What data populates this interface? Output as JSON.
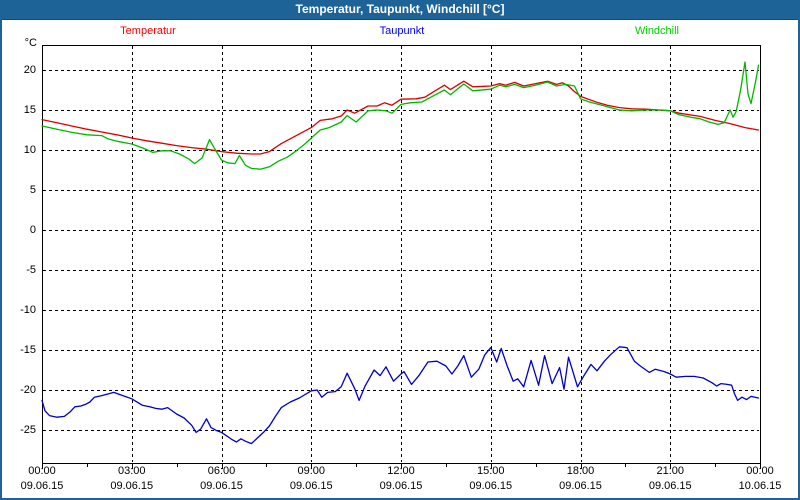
{
  "window": {
    "title": "Temperatur, Taupunkt, Windchill [°C]",
    "titlebar_color": "#1d6397"
  },
  "chart_data": {
    "type": "line",
    "title": "Temperatur, Taupunkt, Windchill [°C]",
    "ylabel": "°C",
    "xlabel": "",
    "x_unit": "hours_of_day",
    "xlim": [
      0,
      24
    ],
    "ylim": [
      -29.1,
      23.1
    ],
    "grid": true,
    "legend_position": "top",
    "y_ticks": [
      20,
      15,
      10,
      5,
      0,
      -5,
      -10,
      -15,
      -20,
      -25
    ],
    "x_ticks": [
      {
        "h": 0,
        "time": "00:00",
        "date": "09.06.15"
      },
      {
        "h": 3,
        "time": "03:00",
        "date": "09.06.15"
      },
      {
        "h": 6,
        "time": "06:00",
        "date": "09.06.15"
      },
      {
        "h": 9,
        "time": "09:00",
        "date": "09.06.15"
      },
      {
        "h": 12,
        "time": "12:00",
        "date": "09.06.15"
      },
      {
        "h": 15,
        "time": "15:00",
        "date": "09.06.15"
      },
      {
        "h": 18,
        "time": "18:00",
        "date": "09.06.15"
      },
      {
        "h": 21,
        "time": "21:00",
        "date": "09.06.15"
      },
      {
        "h": 24,
        "time": "00:00",
        "date": "10.06.15"
      }
    ],
    "series": [
      {
        "name": "Temperatur",
        "color": "#dd0000",
        "legend_color": "#ff0000",
        "points": [
          [
            0,
            13.8
          ],
          [
            0.5,
            13.4
          ],
          [
            1,
            13.0
          ],
          [
            1.5,
            12.6
          ],
          [
            2,
            12.25
          ],
          [
            2.5,
            11.9
          ],
          [
            3,
            11.5
          ],
          [
            3.5,
            11.15
          ],
          [
            4,
            10.85
          ],
          [
            4.5,
            10.55
          ],
          [
            5,
            10.3
          ],
          [
            5.5,
            10.1
          ],
          [
            6,
            9.8
          ],
          [
            6.5,
            9.6
          ],
          [
            7,
            9.5
          ],
          [
            7.3,
            9.5
          ],
          [
            7.6,
            9.8
          ],
          [
            8,
            10.8
          ],
          [
            8.5,
            11.8
          ],
          [
            9,
            12.8
          ],
          [
            9.3,
            13.7
          ],
          [
            9.7,
            13.9
          ],
          [
            10,
            14.25
          ],
          [
            10.2,
            15.0
          ],
          [
            10.45,
            14.6
          ],
          [
            10.9,
            15.5
          ],
          [
            11.2,
            15.5
          ],
          [
            11.45,
            15.9
          ],
          [
            11.7,
            15.6
          ],
          [
            12,
            16.35
          ],
          [
            12.5,
            16.4
          ],
          [
            12.8,
            16.6
          ],
          [
            13.1,
            17.3
          ],
          [
            13.45,
            18.1
          ],
          [
            13.65,
            17.55
          ],
          [
            14.1,
            18.6
          ],
          [
            14.4,
            17.9
          ],
          [
            15,
            18.0
          ],
          [
            15.3,
            18.3
          ],
          [
            15.5,
            18.1
          ],
          [
            15.8,
            18.45
          ],
          [
            16.1,
            18.0
          ],
          [
            16.5,
            18.3
          ],
          [
            16.9,
            18.6
          ],
          [
            17.2,
            18.2
          ],
          [
            17.4,
            18.4
          ],
          [
            17.6,
            18.0
          ],
          [
            17.8,
            17.3
          ],
          [
            18.0,
            16.7
          ],
          [
            18.3,
            16.3
          ],
          [
            18.6,
            15.9
          ],
          [
            18.9,
            15.6
          ],
          [
            19.3,
            15.3
          ],
          [
            19.7,
            15.15
          ],
          [
            20.2,
            15.1
          ],
          [
            20.6,
            15.0
          ],
          [
            21,
            14.9
          ],
          [
            21.3,
            14.6
          ],
          [
            22,
            14.2
          ],
          [
            22.5,
            13.7
          ],
          [
            23,
            13.3
          ],
          [
            23.5,
            12.8
          ],
          [
            23.95,
            12.5
          ]
        ]
      },
      {
        "name": "Taupunkt",
        "color": "#0000cc",
        "legend_color": "#0000ff",
        "points": [
          [
            0,
            -21.3
          ],
          [
            0.1,
            -22.6
          ],
          [
            0.25,
            -23.2
          ],
          [
            0.5,
            -23.4
          ],
          [
            0.75,
            -23.3
          ],
          [
            0.95,
            -22.7
          ],
          [
            1.1,
            -22.1
          ],
          [
            1.3,
            -22.0
          ],
          [
            1.45,
            -21.8
          ],
          [
            1.6,
            -21.5
          ],
          [
            1.75,
            -20.9
          ],
          [
            2.0,
            -20.7
          ],
          [
            2.4,
            -20.3
          ],
          [
            2.7,
            -20.7
          ],
          [
            3.0,
            -21.1
          ],
          [
            3.35,
            -21.9
          ],
          [
            3.6,
            -22.1
          ],
          [
            3.8,
            -22.3
          ],
          [
            4.0,
            -22.4
          ],
          [
            4.2,
            -22.2
          ],
          [
            4.5,
            -23.0
          ],
          [
            4.75,
            -23.5
          ],
          [
            5.0,
            -24.4
          ],
          [
            5.15,
            -25.3
          ],
          [
            5.3,
            -24.9
          ],
          [
            5.5,
            -23.6
          ],
          [
            5.65,
            -24.7
          ],
          [
            5.85,
            -25.1
          ],
          [
            6.0,
            -25.3
          ],
          [
            6.2,
            -25.8
          ],
          [
            6.35,
            -26.2
          ],
          [
            6.5,
            -26.5
          ],
          [
            6.65,
            -26.1
          ],
          [
            6.8,
            -26.4
          ],
          [
            7.0,
            -26.7
          ],
          [
            7.2,
            -26.0
          ],
          [
            7.4,
            -25.3
          ],
          [
            7.6,
            -24.5
          ],
          [
            7.8,
            -23.3
          ],
          [
            8.0,
            -22.2
          ],
          [
            8.3,
            -21.5
          ],
          [
            8.6,
            -21.0
          ],
          [
            9.0,
            -20.1
          ],
          [
            9.2,
            -20.0
          ],
          [
            9.35,
            -20.9
          ],
          [
            9.55,
            -20.3
          ],
          [
            9.8,
            -20.2
          ],
          [
            10.0,
            -19.6
          ],
          [
            10.2,
            -17.9
          ],
          [
            10.45,
            -19.8
          ],
          [
            10.6,
            -21.3
          ],
          [
            10.8,
            -19.5
          ],
          [
            11.1,
            -17.5
          ],
          [
            11.3,
            -18.2
          ],
          [
            11.5,
            -17.1
          ],
          [
            11.75,
            -18.9
          ],
          [
            12.0,
            -18.0
          ],
          [
            12.1,
            -17.7
          ],
          [
            12.35,
            -19.3
          ],
          [
            12.6,
            -18.2
          ],
          [
            12.9,
            -16.5
          ],
          [
            13.2,
            -16.4
          ],
          [
            13.5,
            -17.0
          ],
          [
            13.7,
            -18.0
          ],
          [
            13.9,
            -17.0
          ],
          [
            14.1,
            -15.7
          ],
          [
            14.35,
            -18.4
          ],
          [
            14.6,
            -17.4
          ],
          [
            14.8,
            -15.6
          ],
          [
            15.0,
            -14.7
          ],
          [
            15.2,
            -16.5
          ],
          [
            15.35,
            -14.8
          ],
          [
            15.55,
            -17.0
          ],
          [
            15.75,
            -18.9
          ],
          [
            15.9,
            -18.6
          ],
          [
            16.1,
            -19.6
          ],
          [
            16.35,
            -16.3
          ],
          [
            16.6,
            -19.4
          ],
          [
            16.8,
            -15.7
          ],
          [
            17.05,
            -19.2
          ],
          [
            17.3,
            -17.2
          ],
          [
            17.45,
            -19.9
          ],
          [
            17.6,
            -15.9
          ],
          [
            17.9,
            -19.6
          ],
          [
            18.1,
            -18.3
          ],
          [
            18.35,
            -16.8
          ],
          [
            18.55,
            -17.6
          ],
          [
            18.8,
            -16.4
          ],
          [
            19.0,
            -15.6
          ],
          [
            19.3,
            -14.6
          ],
          [
            19.55,
            -14.7
          ],
          [
            19.8,
            -16.4
          ],
          [
            20.0,
            -17.0
          ],
          [
            20.3,
            -17.8
          ],
          [
            20.5,
            -17.4
          ],
          [
            20.8,
            -17.7
          ],
          [
            21.0,
            -18.0
          ],
          [
            21.2,
            -18.4
          ],
          [
            21.5,
            -18.3
          ],
          [
            21.8,
            -18.3
          ],
          [
            22.1,
            -18.5
          ],
          [
            22.4,
            -19.1
          ],
          [
            22.55,
            -19.5
          ],
          [
            22.7,
            -19.2
          ],
          [
            22.9,
            -19.3
          ],
          [
            23.05,
            -19.4
          ],
          [
            23.15,
            -20.5
          ],
          [
            23.25,
            -21.3
          ],
          [
            23.4,
            -20.9
          ],
          [
            23.55,
            -21.2
          ],
          [
            23.7,
            -20.8
          ],
          [
            23.95,
            -21.0
          ]
        ]
      },
      {
        "name": "Windchill",
        "color": "#00b800",
        "legend_color": "#00cc00",
        "points": [
          [
            0,
            13.0
          ],
          [
            0.5,
            12.6
          ],
          [
            1,
            12.2
          ],
          [
            1.5,
            11.9
          ],
          [
            2,
            11.8
          ],
          [
            2.2,
            11.4
          ],
          [
            2.5,
            11.1
          ],
          [
            3,
            10.75
          ],
          [
            3.4,
            10.2
          ],
          [
            3.7,
            9.7
          ],
          [
            4,
            9.9
          ],
          [
            4.3,
            9.9
          ],
          [
            4.6,
            9.5
          ],
          [
            4.9,
            8.9
          ],
          [
            5.1,
            8.3
          ],
          [
            5.35,
            9.0
          ],
          [
            5.6,
            11.3
          ],
          [
            5.75,
            10.3
          ],
          [
            6,
            8.75
          ],
          [
            6.2,
            8.4
          ],
          [
            6.45,
            8.3
          ],
          [
            6.6,
            9.3
          ],
          [
            6.8,
            8.1
          ],
          [
            7.0,
            7.7
          ],
          [
            7.3,
            7.6
          ],
          [
            7.6,
            7.9
          ],
          [
            7.9,
            8.6
          ],
          [
            8.2,
            9.1
          ],
          [
            8.5,
            9.9
          ],
          [
            8.8,
            10.8
          ],
          [
            9,
            11.5
          ],
          [
            9.3,
            12.5
          ],
          [
            9.6,
            12.8
          ],
          [
            10,
            13.5
          ],
          [
            10.2,
            14.3
          ],
          [
            10.5,
            13.5
          ],
          [
            10.9,
            14.9
          ],
          [
            11.2,
            15.0
          ],
          [
            11.5,
            14.9
          ],
          [
            11.7,
            14.6
          ],
          [
            12,
            15.7
          ],
          [
            12.3,
            15.9
          ],
          [
            12.7,
            16.0
          ],
          [
            13.1,
            16.8
          ],
          [
            13.45,
            17.5
          ],
          [
            13.65,
            16.9
          ],
          [
            14.1,
            18.25
          ],
          [
            14.4,
            17.4
          ],
          [
            15,
            17.6
          ],
          [
            15.3,
            18.1
          ],
          [
            15.5,
            17.9
          ],
          [
            15.8,
            18.2
          ],
          [
            16.1,
            17.8
          ],
          [
            16.5,
            18.1
          ],
          [
            16.9,
            18.5
          ],
          [
            17.2,
            18.0
          ],
          [
            17.5,
            18.2
          ],
          [
            17.8,
            18.0
          ],
          [
            18.0,
            16.4
          ],
          [
            18.3,
            16.0
          ],
          [
            18.6,
            15.7
          ],
          [
            18.9,
            15.4
          ],
          [
            19.3,
            15.0
          ],
          [
            19.7,
            14.9
          ],
          [
            20.2,
            15.0
          ],
          [
            20.7,
            15.0
          ],
          [
            21,
            14.9
          ],
          [
            21.3,
            14.4
          ],
          [
            21.7,
            14.1
          ],
          [
            22,
            13.9
          ],
          [
            22.3,
            13.5
          ],
          [
            22.6,
            13.2
          ],
          [
            22.8,
            13.4
          ],
          [
            23.0,
            15.0
          ],
          [
            23.1,
            14.1
          ],
          [
            23.2,
            14.8
          ],
          [
            23.35,
            17.5
          ],
          [
            23.5,
            21.0
          ],
          [
            23.6,
            17.0
          ],
          [
            23.7,
            15.8
          ],
          [
            23.85,
            18.5
          ],
          [
            23.95,
            20.6
          ]
        ]
      }
    ]
  }
}
